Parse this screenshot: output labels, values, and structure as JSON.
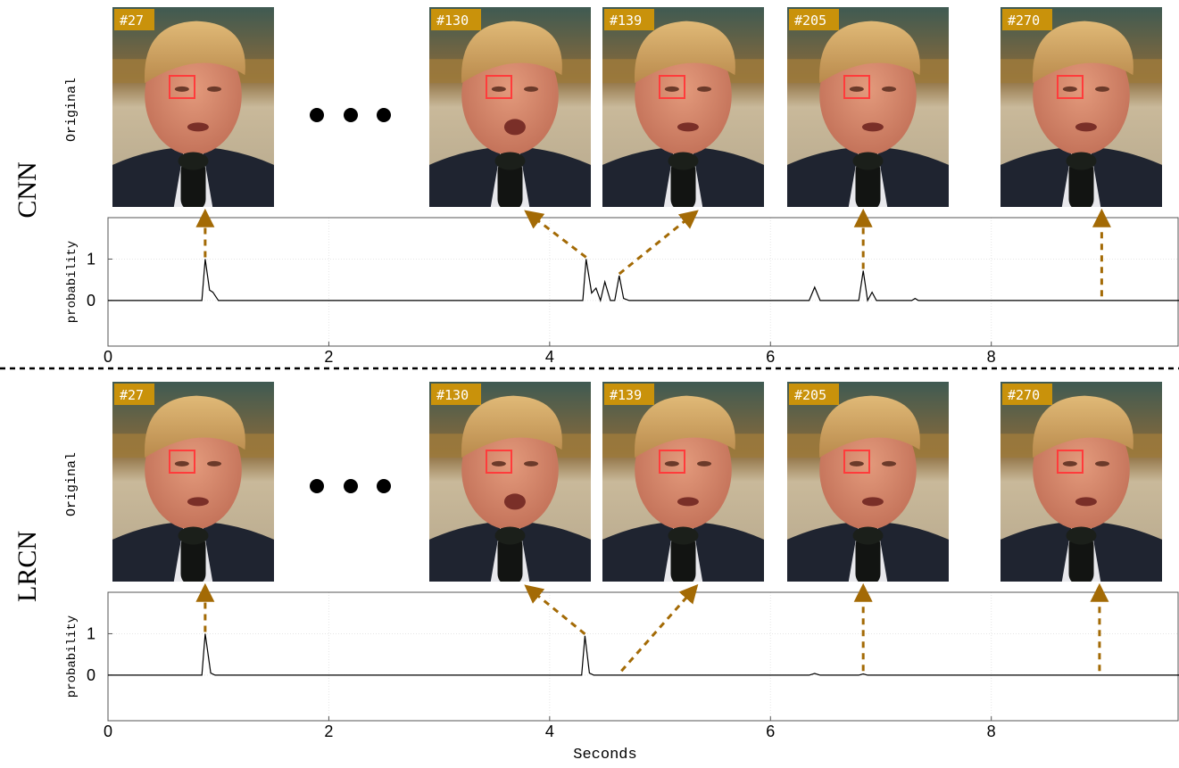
{
  "colors": {
    "arrow": "#a36a05",
    "badge_bg": "#c9920b",
    "badge_text": "#ffffff",
    "eye_box": "#ff3b3b",
    "line": "#000000",
    "divider": "#000000"
  },
  "x_axis_label": "Seconds",
  "panels": [
    {
      "model_label": "CNN",
      "row_label": "Original",
      "frames": [
        "#27",
        "#130",
        "#139",
        "#205",
        "#270"
      ],
      "ellipsis_icon": "three-dots-icon",
      "chart_data": {
        "type": "line",
        "ylabel": "probability",
        "xlim": [
          0,
          9.7
        ],
        "ylim": [
          -1.1,
          2
        ],
        "x_ticks": [
          "0",
          "2",
          "4",
          "6",
          "8"
        ],
        "y_ticks": [
          "1",
          "0"
        ],
        "grid": true,
        "x": [
          0,
          0.85,
          0.88,
          0.92,
          0.95,
          1.0,
          4.3,
          4.33,
          4.38,
          4.42,
          4.46,
          4.5,
          4.55,
          4.59,
          4.63,
          4.67,
          4.72,
          6.35,
          6.4,
          6.45,
          6.8,
          6.84,
          6.88,
          6.92,
          6.96,
          7.0,
          7.28,
          7.31,
          7.34,
          9.7
        ],
        "values": [
          0,
          0,
          1.0,
          0.25,
          0.2,
          0,
          0,
          1.0,
          0.18,
          0.3,
          0,
          0.45,
          0,
          0,
          0.6,
          0.05,
          0,
          0,
          0.32,
          0,
          0,
          0.72,
          0,
          0.2,
          0,
          0,
          0,
          0.05,
          0,
          0
        ]
      },
      "arrows": [
        {
          "frame": "#27",
          "x_seconds": 0.88
        },
        {
          "frame": "#130",
          "x_seconds": 4.33
        },
        {
          "frame": "#139",
          "x_seconds": 4.63
        },
        {
          "frame": "#205",
          "x_seconds": 6.84
        },
        {
          "frame": "#270",
          "x_seconds": 9.0
        }
      ]
    },
    {
      "model_label": "LRCN",
      "row_label": "Original",
      "frames": [
        "#27",
        "#130",
        "#139",
        "#205",
        "#270"
      ],
      "ellipsis_icon": "three-dots-icon",
      "chart_data": {
        "type": "line",
        "ylabel": "probability",
        "xlim": [
          0,
          9.7
        ],
        "ylim": [
          -1.1,
          2
        ],
        "x_ticks": [
          "0",
          "2",
          "4",
          "6",
          "8"
        ],
        "y_ticks": [
          "1",
          "0"
        ],
        "grid": true,
        "x": [
          0,
          0.85,
          0.88,
          0.93,
          0.97,
          4.29,
          4.32,
          4.36,
          4.4,
          6.35,
          6.4,
          6.45,
          6.8,
          6.84,
          6.88,
          9.7
        ],
        "values": [
          0,
          0,
          1.0,
          0.05,
          0,
          0,
          0.95,
          0.05,
          0,
          0,
          0.04,
          0,
          0,
          0.03,
          0,
          0
        ]
      },
      "arrows": [
        {
          "frame": "#27",
          "x_seconds": 0.88
        },
        {
          "frame": "#130",
          "x_seconds": 4.32
        },
        {
          "frame": "#139",
          "x_seconds": 4.65
        },
        {
          "frame": "#205",
          "x_seconds": 6.84
        },
        {
          "frame": "#270",
          "x_seconds": 8.98
        }
      ]
    }
  ]
}
